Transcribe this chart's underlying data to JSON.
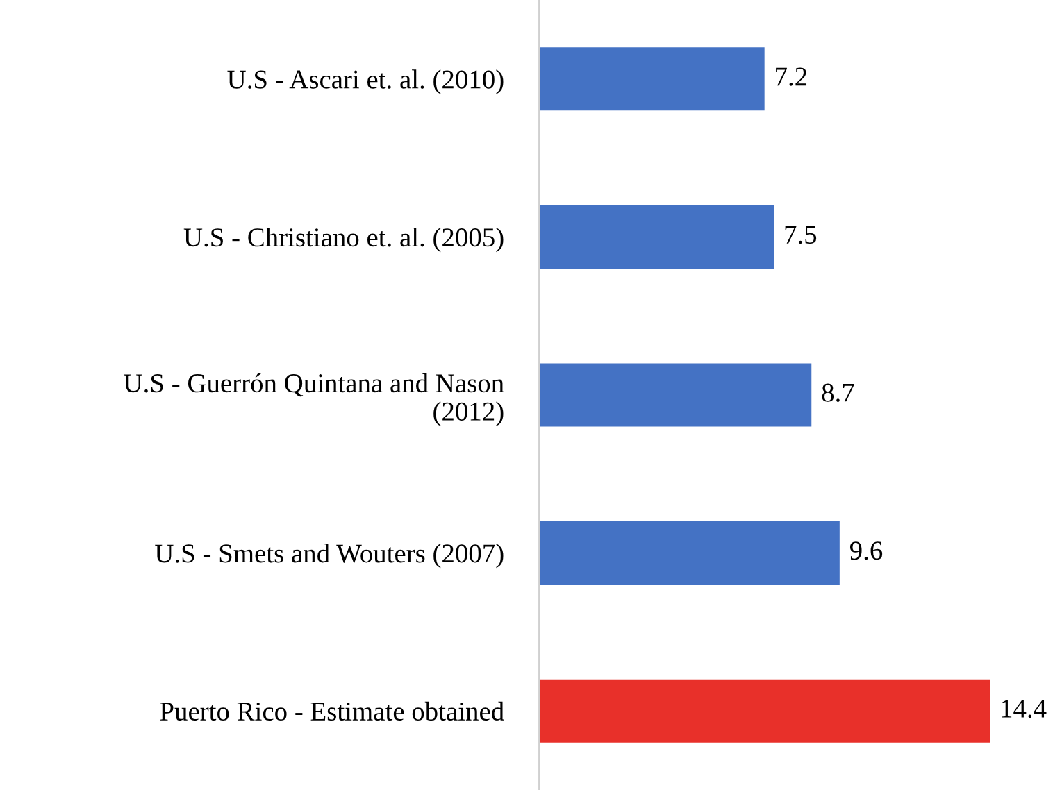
{
  "chart_data": {
    "type": "bar",
    "orientation": "horizontal",
    "categories": [
      "U.S - Ascari et. al. (2010)",
      "U.S - Christiano et. al. (2005)",
      "U.S - Guerrón Quintana and Nason\n(2012)",
      "U.S - Smets and Wouters (2007)",
      "Puerto Rico - Estimate obtained"
    ],
    "values": [
      7.2,
      7.5,
      8.7,
      9.6,
      14.4
    ],
    "colors": [
      "#4472c4",
      "#4472c4",
      "#4472c4",
      "#4472c4",
      "#e8302a"
    ],
    "tick_labels": "y",
    "data_labels": true,
    "grid": false,
    "legend": false
  }
}
